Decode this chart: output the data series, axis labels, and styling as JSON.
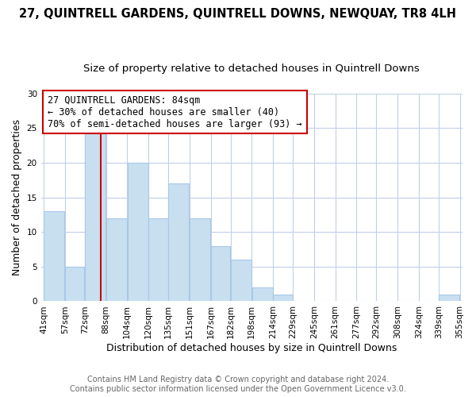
{
  "title": "27, QUINTRELL GARDENS, QUINTRELL DOWNS, NEWQUAY, TR8 4LH",
  "subtitle": "Size of property relative to detached houses in Quintrell Downs",
  "xlabel": "Distribution of detached houses by size in Quintrell Downs",
  "ylabel": "Number of detached properties",
  "bar_color": "#c8dff0",
  "bar_edge_color": "#a8c8e8",
  "annotation_box_edge": "#cc0000",
  "annotation_line_color": "#cc0000",
  "annotation_text_line1": "27 QUINTRELL GARDENS: 84sqm",
  "annotation_text_line2": "← 30% of detached houses are smaller (40)",
  "annotation_text_line3": "70% of semi-detached houses are larger (93) →",
  "property_line_x": 84,
  "ylim": [
    0,
    30
  ],
  "yticks": [
    0,
    5,
    10,
    15,
    20,
    25,
    30
  ],
  "bin_edges": [
    41,
    57,
    72,
    88,
    104,
    120,
    135,
    151,
    167,
    182,
    198,
    214,
    229,
    245,
    261,
    277,
    292,
    308,
    324,
    339,
    355
  ],
  "bin_counts": [
    13,
    5,
    25,
    12,
    20,
    12,
    17,
    12,
    8,
    6,
    2,
    1,
    0,
    0,
    0,
    0,
    0,
    0,
    0,
    1
  ],
  "footer_line1": "Contains HM Land Registry data © Crown copyright and database right 2024.",
  "footer_line2": "Contains public sector information licensed under the Open Government Licence v3.0.",
  "bg_color": "#ffffff",
  "grid_color": "#c0d0e8",
  "title_fontsize": 10.5,
  "subtitle_fontsize": 9.5,
  "axis_label_fontsize": 9,
  "tick_fontsize": 7.5,
  "annotation_fontsize": 8.5,
  "footer_fontsize": 7
}
